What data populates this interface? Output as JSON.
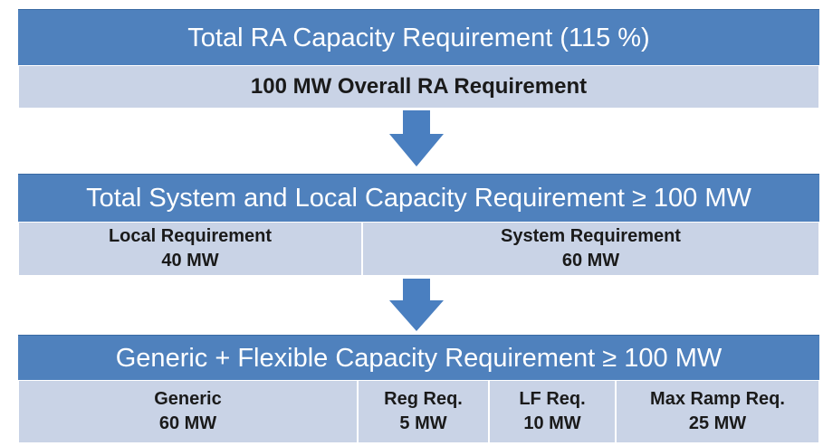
{
  "steps": [
    {
      "title": "Total RA Capacity Requirement (115 %)",
      "cells": [
        {
          "label": "100 MW Overall RA Requirement"
        }
      ]
    },
    {
      "title": "Total System and Local Capacity Requirement ≥ 100 MW",
      "cells": [
        {
          "label": "Local Requirement",
          "value": "40 MW"
        },
        {
          "label": "System Requirement",
          "value": "60 MW"
        }
      ]
    },
    {
      "title": "Generic + Flexible Capacity Requirement ≥ 100 MW",
      "cells": [
        {
          "label": "Generic",
          "value": "60 MW"
        },
        {
          "label": "Reg Req.",
          "value": "5 MW"
        },
        {
          "label": "LF Req.",
          "value": "10 MW"
        },
        {
          "label": "Max Ramp Req.",
          "value": "25 MW"
        }
      ]
    }
  ]
}
